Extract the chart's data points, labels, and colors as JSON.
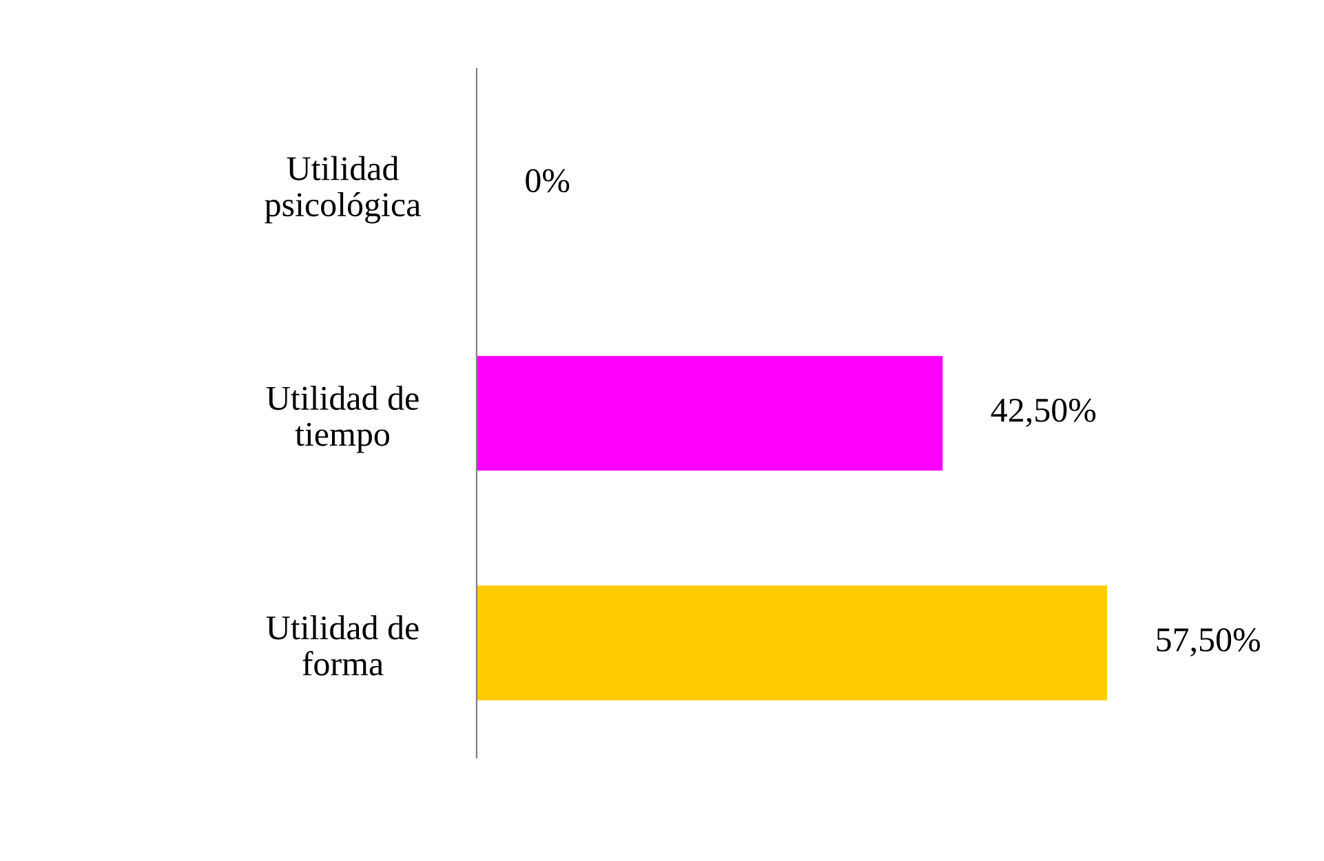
{
  "chart_data": {
    "type": "bar",
    "orientation": "horizontal",
    "categories": [
      "Utilidad\npsicológica",
      "Utilidad de\ntiempo",
      "Utilidad de\nforma"
    ],
    "values": [
      0,
      42.5,
      57.5
    ],
    "colors": [
      "#2e4e78",
      "#ff00ff",
      "#ffcc00"
    ],
    "value_labels": [
      "0%",
      "42,50%",
      "57,50%"
    ],
    "grid": false,
    "legend": false,
    "tick_labels": "y"
  }
}
